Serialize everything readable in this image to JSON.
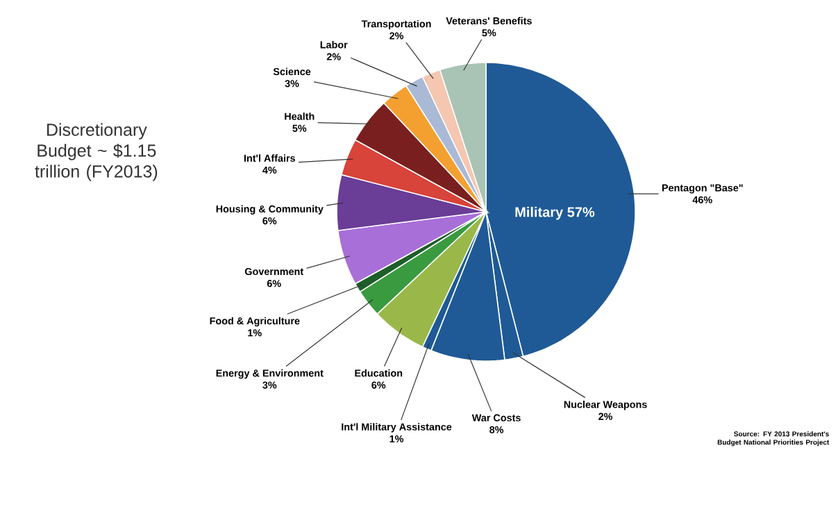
{
  "chart_data": {
    "type": "pie",
    "title": "Discretionary Budget ~ $1.15 trillion (FY2013)",
    "categories": [
      "Pentagon \"Base\"",
      "Nuclear Weapons",
      "War Costs",
      "Int'l Military Assistance",
      "Education",
      "Energy & Environment",
      "Food & Agriculture",
      "Government",
      "Housing & Community",
      "Int'l Affairs",
      "Health",
      "Science",
      "Labor",
      "Transportation",
      "Veterans' Benefits"
    ],
    "values": [
      46,
      2,
      8,
      1,
      6,
      3,
      1,
      6,
      6,
      4,
      5,
      3,
      2,
      2,
      5
    ],
    "value_labels": [
      "46%",
      "2%",
      "8%",
      "1%",
      "6%",
      "3%",
      "1%",
      "6%",
      "6%",
      "4%",
      "5%",
      "3%",
      "2%",
      "2%",
      "5%"
    ],
    "colors": [
      "#1f5a96",
      "#1f5a96",
      "#1f5a96",
      "#1f5a96",
      "#9ab84a",
      "#3a9a3f",
      "#1d5e2a",
      "#a86fd8",
      "#6a3d97",
      "#d8433a",
      "#7a1f1f",
      "#f4a030",
      "#a9b9d6",
      "#f5c6b0",
      "#a9c4b4"
    ],
    "annotations": [
      "Military 57%",
      "Source: FY 2013 President's Budget National Priorities Project"
    ]
  }
}
